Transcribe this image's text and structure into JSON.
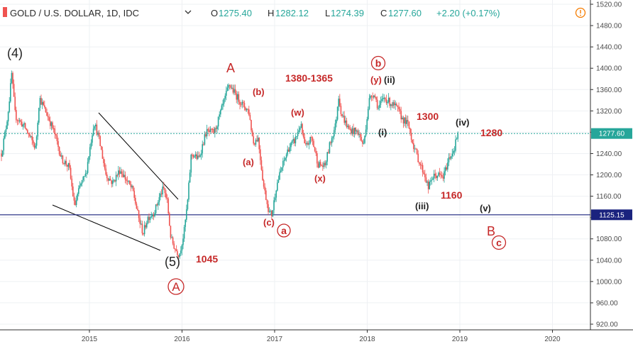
{
  "header": {
    "symbol_title": "GOLD / U.S. DOLLAR, 1D, IDC",
    "open_label": "O",
    "open": "1275.40",
    "high_label": "H",
    "high": "1282.12",
    "low_label": "L",
    "low": "1274.39",
    "close_label": "C",
    "close": "1277.60",
    "change": "+2.20 (+0.17%)",
    "dropdown_icon": "chevron-down-icon",
    "alert_icon": "exclamation-circle-icon"
  },
  "colors": {
    "up": "#26a69a",
    "down": "#ef5350",
    "accent_red": "#c62828",
    "price_line": "#26a69a",
    "support_line": "#1a237e"
  },
  "chart_data": {
    "type": "candlestick",
    "title": "GOLD / U.S. DOLLAR, 1D, IDC",
    "x_ticks": [
      "2015",
      "2016",
      "2017",
      "2018",
      "2019",
      "2020"
    ],
    "y_ticks": [
      1520,
      1480,
      1440,
      1400,
      1360,
      1320,
      1280,
      1240,
      1200,
      1160,
      1120,
      1080,
      1040,
      1000,
      960,
      920
    ],
    "ylim": [
      910,
      1530
    ],
    "xlim": [
      2014.05,
      2020.5
    ],
    "last_price": 1277.6,
    "last_price_label": "1277.60",
    "horizontal_level": 1125.15,
    "horizontal_level_label": "1125.15",
    "price_path": [
      [
        2014.05,
        1240
      ],
      [
        2014.1,
        1290
      ],
      [
        2014.13,
        1330
      ],
      [
        2014.16,
        1390
      ],
      [
        2014.2,
        1310
      ],
      [
        2014.3,
        1290
      ],
      [
        2014.42,
        1250
      ],
      [
        2014.46,
        1345
      ],
      [
        2014.55,
        1310
      ],
      [
        2014.62,
        1280
      ],
      [
        2014.7,
        1230
      ],
      [
        2014.78,
        1215
      ],
      [
        2014.84,
        1140
      ],
      [
        2014.9,
        1180
      ],
      [
        2014.96,
        1200
      ],
      [
        2015.05,
        1300
      ],
      [
        2015.1,
        1270
      ],
      [
        2015.18,
        1200
      ],
      [
        2015.25,
        1185
      ],
      [
        2015.33,
        1210
      ],
      [
        2015.4,
        1190
      ],
      [
        2015.47,
        1170
      ],
      [
        2015.53,
        1120
      ],
      [
        2015.58,
        1090
      ],
      [
        2015.63,
        1120
      ],
      [
        2015.7,
        1130
      ],
      [
        2015.76,
        1160
      ],
      [
        2015.8,
        1175
      ],
      [
        2015.84,
        1150
      ],
      [
        2015.88,
        1080
      ],
      [
        2015.93,
        1060
      ],
      [
        2015.97,
        1050
      ],
      [
        2016.02,
        1090
      ],
      [
        2016.06,
        1150
      ],
      [
        2016.1,
        1240
      ],
      [
        2016.18,
        1230
      ],
      [
        2016.26,
        1280
      ],
      [
        2016.35,
        1280
      ],
      [
        2016.44,
        1330
      ],
      [
        2016.51,
        1370
      ],
      [
        2016.58,
        1350
      ],
      [
        2016.66,
        1330
      ],
      [
        2016.72,
        1320
      ],
      [
        2016.77,
        1260
      ],
      [
        2016.82,
        1270
      ],
      [
        2016.88,
        1180
      ],
      [
        2016.94,
        1130
      ],
      [
        2016.97,
        1125
      ],
      [
        2017.02,
        1180
      ],
      [
        2017.08,
        1215
      ],
      [
        2017.15,
        1250
      ],
      [
        2017.22,
        1265
      ],
      [
        2017.28,
        1295
      ],
      [
        2017.33,
        1250
      ],
      [
        2017.4,
        1270
      ],
      [
        2017.47,
        1220
      ],
      [
        2017.54,
        1215
      ],
      [
        2017.6,
        1260
      ],
      [
        2017.66,
        1295
      ],
      [
        2017.69,
        1350
      ],
      [
        2017.72,
        1315
      ],
      [
        2017.8,
        1285
      ],
      [
        2017.9,
        1280
      ],
      [
        2017.96,
        1255
      ],
      [
        2018.02,
        1340
      ],
      [
        2018.07,
        1355
      ],
      [
        2018.12,
        1325
      ],
      [
        2018.18,
        1345
      ],
      [
        2018.25,
        1335
      ],
      [
        2018.32,
        1325
      ],
      [
        2018.38,
        1305
      ],
      [
        2018.44,
        1295
      ],
      [
        2018.5,
        1255
      ],
      [
        2018.56,
        1225
      ],
      [
        2018.62,
        1200
      ],
      [
        2018.66,
        1175
      ],
      [
        2018.7,
        1195
      ],
      [
        2018.76,
        1200
      ],
      [
        2018.82,
        1195
      ],
      [
        2018.88,
        1230
      ],
      [
        2018.94,
        1250
      ],
      [
        2018.98,
        1280
      ]
    ]
  },
  "annotations": {
    "w4": "(4)",
    "w5": "(5)",
    "big_A": "A",
    "circ_A": "A",
    "A_top": "A",
    "a_label": "(a)",
    "b_label": "(b)",
    "c_label": "(c)",
    "circ_a": "a",
    "w_label": "(w)",
    "x_label": "(x)",
    "y_label": "(y)",
    "ii_label": "(ii)",
    "circ_b": "b",
    "i_label": "(i)",
    "iii_label": "(iii)",
    "iv_label": "(iv)",
    "v_label": "(v)",
    "B_label": "B",
    "circ_c": "c",
    "p1045": "1045",
    "p1380": "1380-1365",
    "p1300": "1300",
    "p1280": "1280",
    "p1160": "1160"
  }
}
